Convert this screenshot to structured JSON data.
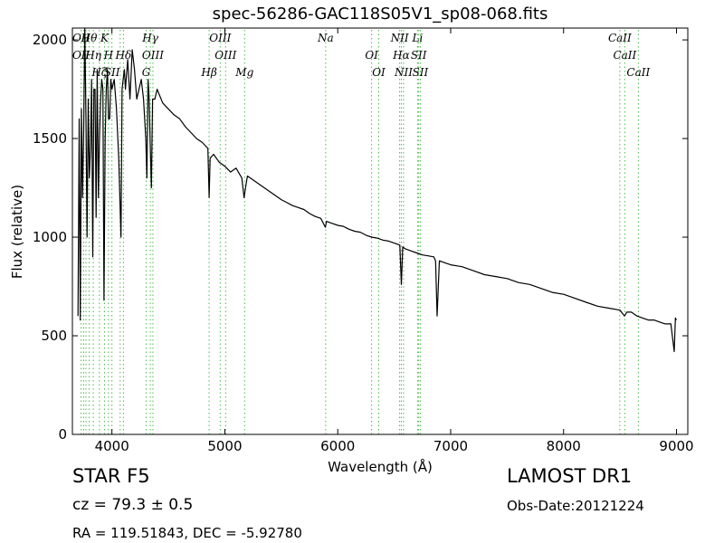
{
  "chart_data": {
    "type": "line",
    "title": "spec-56286-GAC118S05V1_sp08-068.fits",
    "xlabel": "Wavelength (Å)",
    "ylabel": "Flux (relative)",
    "xlim": [
      3650,
      9100
    ],
    "ylim": [
      0,
      2060
    ],
    "xticks": [
      4000,
      5000,
      6000,
      7000,
      8000,
      9000
    ],
    "yticks": [
      0,
      500,
      1000,
      1500,
      2000
    ],
    "grid": false,
    "series": [
      {
        "color": "#000000",
        "x": [
          3700,
          3710,
          3720,
          3730,
          3740,
          3750,
          3760,
          3770,
          3780,
          3790,
          3800,
          3810,
          3820,
          3830,
          3840,
          3850,
          3860,
          3870,
          3880,
          3890,
          3900,
          3910,
          3920,
          3930,
          3940,
          3950,
          3960,
          3970,
          3980,
          3990,
          4000,
          4020,
          4040,
          4060,
          4080,
          4090,
          4100,
          4110,
          4120,
          4140,
          4160,
          4180,
          4200,
          4220,
          4240,
          4260,
          4280,
          4300,
          4310,
          4320,
          4330,
          4340,
          4350,
          4360,
          4380,
          4400,
          4450,
          4500,
          4550,
          4600,
          4650,
          4700,
          4750,
          4800,
          4850,
          4861,
          4870,
          4900,
          4950,
          5000,
          5050,
          5100,
          5150,
          5170,
          5183,
          5200,
          5250,
          5300,
          5350,
          5400,
          5450,
          5500,
          5550,
          5600,
          5650,
          5700,
          5750,
          5800,
          5850,
          5890,
          5900,
          5950,
          6000,
          6050,
          6100,
          6150,
          6200,
          6250,
          6300,
          6350,
          6400,
          6450,
          6500,
          6550,
          6563,
          6575,
          6600,
          6650,
          6700,
          6750,
          6800,
          6850,
          6866,
          6880,
          6900,
          6950,
          7000,
          7100,
          7200,
          7300,
          7400,
          7500,
          7600,
          7700,
          7800,
          7900,
          8000,
          8100,
          8200,
          8300,
          8400,
          8500,
          8540,
          8560,
          8600,
          8650,
          8700,
          8750,
          8800,
          8850,
          8900,
          8950,
          8980,
          8990,
          9000
        ],
        "values": [
          600,
          1600,
          580,
          1650,
          1200,
          1550,
          2060,
          1600,
          1000,
          1700,
          1300,
          1450,
          1800,
          900,
          1750,
          1750,
          1100,
          1850,
          1200,
          1500,
          1700,
          1800,
          1750,
          680,
          1500,
          1750,
          1850,
          1600,
          1600,
          1800,
          1750,
          1800,
          1650,
          1400,
          1000,
          1750,
          1800,
          1850,
          1750,
          1900,
          1700,
          1950,
          1850,
          1700,
          1750,
          1800,
          1700,
          1500,
          1300,
          1800,
          1700,
          1450,
          1250,
          1700,
          1700,
          1750,
          1680,
          1650,
          1620,
          1600,
          1560,
          1530,
          1500,
          1480,
          1450,
          1200,
          1400,
          1420,
          1380,
          1360,
          1330,
          1350,
          1300,
          1200,
          1250,
          1310,
          1290,
          1270,
          1250,
          1230,
          1210,
          1190,
          1175,
          1160,
          1150,
          1140,
          1120,
          1105,
          1095,
          1050,
          1080,
          1070,
          1060,
          1055,
          1040,
          1030,
          1025,
          1010,
          1000,
          995,
          985,
          980,
          970,
          960,
          760,
          950,
          940,
          930,
          920,
          910,
          905,
          900,
          880,
          600,
          880,
          870,
          860,
          850,
          830,
          810,
          800,
          790,
          770,
          760,
          740,
          720,
          710,
          690,
          670,
          650,
          640,
          630,
          600,
          620,
          620,
          600,
          590,
          580,
          580,
          570,
          560,
          560,
          420,
          590,
          580
        ]
      }
    ],
    "lines": [
      {
        "wl": 3727,
        "labels": [
          "OII",
          "OII"
        ]
      },
      {
        "wl": 3750,
        "labels": []
      },
      {
        "wl": 3770,
        "labels": []
      },
      {
        "wl": 3798,
        "labels": [
          "Hθ"
        ]
      },
      {
        "wl": 3835,
        "labels": [
          "Hη"
        ]
      },
      {
        "wl": 3889,
        "labels": [
          "Hζ"
        ]
      },
      {
        "wl": 3934,
        "labels": [
          "K"
        ]
      },
      {
        "wl": 3969,
        "labels": [
          "H"
        ]
      },
      {
        "wl": 4000,
        "labels": [
          "SII"
        ]
      },
      {
        "wl": 4073,
        "labels": []
      },
      {
        "wl": 4102,
        "labels": [
          "Hδ"
        ]
      },
      {
        "wl": 4304,
        "labels": [
          "G"
        ]
      },
      {
        "wl": 4340,
        "labels": [
          "Hγ"
        ]
      },
      {
        "wl": 4363,
        "labels": [
          "OIII"
        ]
      },
      {
        "wl": 4861,
        "labels": [
          "Hβ"
        ]
      },
      {
        "wl": 4959,
        "labels": [
          "OIII"
        ]
      },
      {
        "wl": 5007,
        "labels": [
          "OIII"
        ]
      },
      {
        "wl": 5175,
        "labels": [
          "Mg"
        ]
      },
      {
        "wl": 5893,
        "labels": [
          "Na"
        ]
      },
      {
        "wl": 6300,
        "labels": [
          "OI"
        ]
      },
      {
        "wl": 6363,
        "labels": [
          "OI"
        ]
      },
      {
        "wl": 6548,
        "labels": [
          "NII"
        ]
      },
      {
        "wl": 6563,
        "labels": [
          "Hα"
        ]
      },
      {
        "wl": 6583,
        "labels": [
          "NII"
        ]
      },
      {
        "wl": 6707,
        "labels": [
          "Li"
        ]
      },
      {
        "wl": 6717,
        "labels": [
          "SII"
        ]
      },
      {
        "wl": 6731,
        "labels": [
          "SII"
        ]
      },
      {
        "wl": 8498,
        "labels": [
          "CaII"
        ]
      },
      {
        "wl": 8542,
        "labels": [
          "CaII"
        ]
      },
      {
        "wl": 8662,
        "labels": [
          "CaII"
        ]
      }
    ]
  },
  "info": {
    "class_line": "STAR   F5",
    "cz": "cz = 79.3 ± 0.5",
    "coords": "RA = 119.51843, DEC = -5.92780",
    "survey": "LAMOST DR1",
    "obs_date": "Obs-Date:20121224"
  }
}
